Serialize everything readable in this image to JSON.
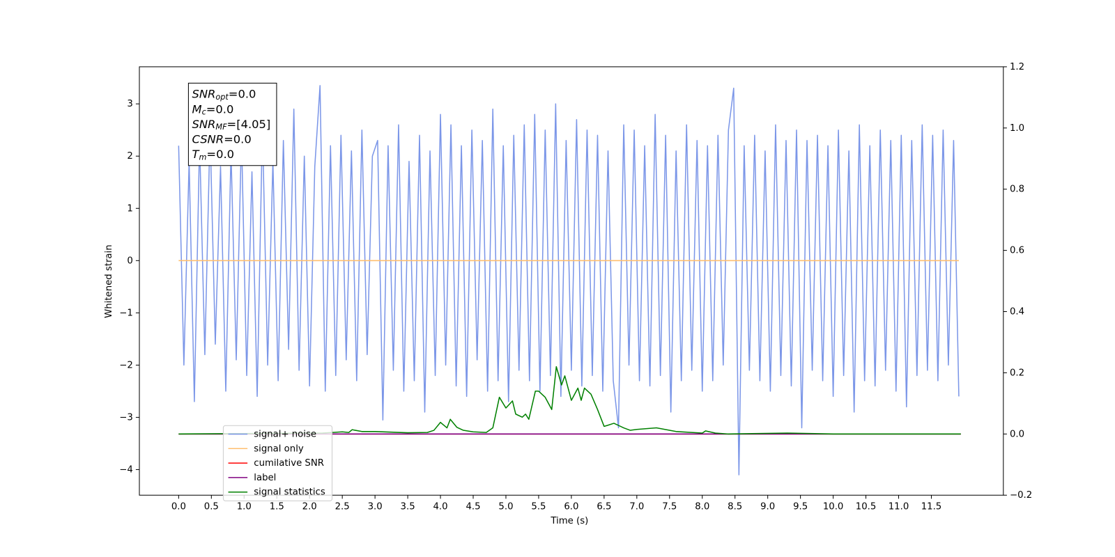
{
  "chart_data": {
    "type": "line",
    "xlabel": "Time (s)",
    "ylabel": "Whitened strain",
    "xlim": [
      -0.6,
      12.6
    ],
    "ylim": [
      -4.49,
      3.71
    ],
    "y2lim": [
      -0.2,
      1.2
    ],
    "xticks": [
      {
        "value": 0,
        "label": "0.0"
      },
      {
        "value": 0.5,
        "label": "0.5"
      },
      {
        "value": 1,
        "label": "1.0"
      },
      {
        "value": 1.5,
        "label": "1.5"
      },
      {
        "value": 2,
        "label": "2.0"
      },
      {
        "value": 2.5,
        "label": "2.5"
      },
      {
        "value": 3,
        "label": "3.0"
      },
      {
        "value": 3.5,
        "label": "3.5"
      },
      {
        "value": 4,
        "label": "4.0"
      },
      {
        "value": 4.5,
        "label": "4.5"
      },
      {
        "value": 5,
        "label": "5.0"
      },
      {
        "value": 5.5,
        "label": "5.5"
      },
      {
        "value": 6,
        "label": "6.0"
      },
      {
        "value": 6.5,
        "label": "6.5"
      },
      {
        "value": 7,
        "label": "7.0"
      },
      {
        "value": 7.5,
        "label": "7.5"
      },
      {
        "value": 8,
        "label": "8.0"
      },
      {
        "value": 8.5,
        "label": "8.5"
      },
      {
        "value": 9,
        "label": "9.0"
      },
      {
        "value": 9.5,
        "label": "9.5"
      },
      {
        "value": 10,
        "label": "10.0"
      },
      {
        "value": 10.5,
        "label": "10.5"
      },
      {
        "value": 11,
        "label": "11.0"
      },
      {
        "value": 11.5,
        "label": "11.5"
      }
    ],
    "yticks": [
      {
        "value": -4,
        "label": "−4"
      },
      {
        "value": -3,
        "label": "−3"
      },
      {
        "value": -2,
        "label": "−2"
      },
      {
        "value": -1,
        "label": "−1"
      },
      0,
      1,
      2,
      3
    ],
    "y2ticks": [
      {
        "value": -0.2,
        "label": "−0.2"
      },
      {
        "value": 0,
        "label": "0.0"
      },
      0.2,
      0.4,
      0.6,
      0.8,
      {
        "value": 1,
        "label": "1.0"
      },
      1.2
    ],
    "legend": "lower left",
    "annotations": [
      {
        "symbol": "SNR",
        "sub": "opt",
        "text": "=0.0"
      },
      {
        "symbol": "M",
        "sub": "c",
        "text": "=0.0"
      },
      {
        "symbol": "SNR",
        "sub": "MF",
        "text": "=[4.05]"
      },
      {
        "symbol": "CSNR",
        "text": "=0.0"
      },
      {
        "symbol": "T",
        "sub": "m",
        "text": "=0.0"
      }
    ],
    "series": [
      {
        "name": "signal+ noise",
        "color": "#7b96e8",
        "axis": "y",
        "x": [
          0,
          0.08,
          0.16,
          0.24,
          0.32,
          0.4,
          0.48,
          0.56,
          0.64,
          0.72,
          0.8,
          0.88,
          0.96,
          1.04,
          1.12,
          1.2,
          1.28,
          1.36,
          1.44,
          1.52,
          1.6,
          1.68,
          1.76,
          1.84,
          1.92,
          2,
          2.08,
          2.16,
          2.24,
          2.32,
          2.4,
          2.48,
          2.56,
          2.64,
          2.72,
          2.8,
          2.88,
          2.96,
          3.04,
          3.12,
          3.2,
          3.28,
          3.36,
          3.44,
          3.52,
          3.6,
          3.68,
          3.76,
          3.84,
          3.92,
          4,
          4.08,
          4.16,
          4.24,
          4.32,
          4.4,
          4.48,
          4.56,
          4.64,
          4.72,
          4.8,
          4.88,
          4.96,
          5.04,
          5.12,
          5.2,
          5.28,
          5.36,
          5.44,
          5.52,
          5.6,
          5.68,
          5.76,
          5.84,
          5.92,
          6,
          6.08,
          6.16,
          6.24,
          6.32,
          6.4,
          6.48,
          6.56,
          6.64,
          6.72,
          6.8,
          6.88,
          6.96,
          7.04,
          7.12,
          7.2,
          7.28,
          7.36,
          7.44,
          7.52,
          7.6,
          7.68,
          7.76,
          7.84,
          7.92,
          8,
          8.08,
          8.16,
          8.24,
          8.32,
          8.4,
          8.48,
          8.56,
          8.64,
          8.72,
          8.8,
          8.88,
          8.96,
          9.04,
          9.12,
          9.2,
          9.28,
          9.36,
          9.44,
          9.52,
          9.6,
          9.68,
          9.76,
          9.84,
          9.92,
          10,
          10.08,
          10.16,
          10.24,
          10.32,
          10.4,
          10.48,
          10.56,
          10.64,
          10.72,
          10.8,
          10.88,
          10.96,
          11.04,
          11.12,
          11.2,
          11.28,
          11.36,
          11.44,
          11.52,
          11.6,
          11.68,
          11.76,
          11.84,
          11.92
        ],
        "values": [
          2.2,
          -2.0,
          1.9,
          -2.7,
          2.3,
          -1.8,
          2.5,
          -1.6,
          1.8,
          -2.5,
          2.1,
          -1.9,
          2.4,
          -2.2,
          1.7,
          -2.6,
          2.6,
          -2.0,
          1.9,
          -2.3,
          2.3,
          -1.7,
          2.9,
          -2.1,
          2.0,
          -2.4,
          1.8,
          3.35,
          -2.5,
          2.2,
          -2.2,
          2.4,
          -1.9,
          2.1,
          -2.3,
          2.5,
          -1.8,
          2.0,
          2.3,
          -3.05,
          2.2,
          -2.1,
          2.6,
          -2.5,
          1.9,
          -2.3,
          2.4,
          -2.9,
          2.1,
          -2.2,
          2.8,
          -2.0,
          2.6,
          -2.4,
          2.2,
          -2.6,
          2.5,
          -1.9,
          2.3,
          -2.5,
          2.9,
          -2.3,
          2.2,
          -2.7,
          2.4,
          -2.1,
          2.6,
          -2.3,
          2.8,
          -2.5,
          2.5,
          -2.2,
          3.0,
          -2.6,
          2.3,
          -2.1,
          2.7,
          -2.4,
          2.5,
          -2.2,
          2.4,
          -2.5,
          2.1,
          -2.3,
          -3.2,
          2.6,
          -2.0,
          2.5,
          -2.3,
          2.2,
          -2.4,
          2.8,
          -2.2,
          2.4,
          -2.9,
          2.1,
          -2.3,
          2.6,
          -2.1,
          2.3,
          -2.5,
          2.2,
          -2.3,
          2.4,
          -2.0,
          2.5,
          3.3,
          -4.1,
          2.2,
          -2.1,
          2.4,
          -2.3,
          2.1,
          -2.5,
          2.6,
          -2.2,
          2.3,
          -2.4,
          2.5,
          -3.2,
          2.3,
          -2.1,
          2.4,
          -2.3,
          2.2,
          -2.6,
          2.5,
          -2.2,
          2.1,
          -2.9,
          2.6,
          -2.3,
          2.2,
          -2.4,
          2.5,
          -2.1,
          2.3,
          -2.5,
          2.4,
          -2.8,
          2.3,
          -2.2,
          2.6,
          -2.1,
          2.4,
          -2.3,
          2.5,
          -2.0,
          2.3,
          -2.6
        ]
      },
      {
        "name": "signal only",
        "color": "#ffbf70",
        "axis": "y",
        "x": [
          0,
          11.92
        ],
        "values": [
          0,
          0
        ]
      },
      {
        "name": "cumilative SNR",
        "color": "#ff0000",
        "axis": "y2",
        "x": [
          0,
          11.95
        ],
        "values": [
          0,
          0
        ]
      },
      {
        "name": "label",
        "color": "#800080",
        "axis": "y2",
        "x": [
          0,
          11.95
        ],
        "values": [
          0,
          0
        ]
      },
      {
        "name": "signal statistics",
        "color": "#008000",
        "axis": "y2",
        "x": [
          0,
          2.2,
          2.5,
          2.6,
          2.65,
          2.8,
          3.0,
          3.5,
          3.8,
          3.9,
          4.0,
          4.1,
          4.15,
          4.25,
          4.35,
          4.5,
          4.7,
          4.8,
          4.9,
          5.0,
          5.1,
          5.15,
          5.25,
          5.3,
          5.35,
          5.45,
          5.5,
          5.6,
          5.7,
          5.77,
          5.85,
          5.9,
          6.0,
          6.1,
          6.15,
          6.2,
          6.3,
          6.4,
          6.5,
          6.55,
          6.65,
          6.8,
          6.9,
          7.0,
          7.3,
          7.6,
          8.0,
          8.05,
          8.2,
          8.4,
          9.3,
          10.0,
          11.95
        ],
        "values": [
          0,
          0.003,
          0.007,
          0.005,
          0.014,
          0.008,
          0.008,
          0.004,
          0.005,
          0.012,
          0.038,
          0.02,
          0.048,
          0.022,
          0.012,
          0.007,
          0.005,
          0.02,
          0.12,
          0.085,
          0.108,
          0.065,
          0.055,
          0.065,
          0.048,
          0.14,
          0.14,
          0.12,
          0.08,
          0.22,
          0.16,
          0.19,
          0.11,
          0.15,
          0.11,
          0.15,
          0.13,
          0.08,
          0.025,
          0.028,
          0.035,
          0.02,
          0.012,
          0.015,
          0.02,
          0.008,
          0.003,
          0.01,
          0.003,
          0,
          0.003,
          0,
          0
        ]
      }
    ]
  }
}
